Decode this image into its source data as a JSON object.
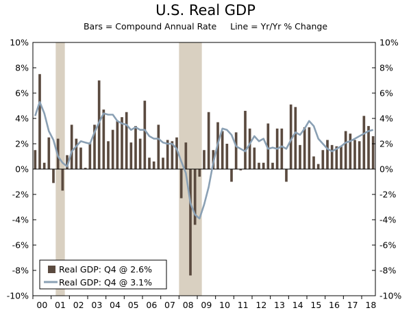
{
  "chart_data": {
    "type": "bar",
    "title": "U.S. Real GDP",
    "subtitle": "Bars = Compound Annual Rate     Line = Yr/Yr % Change",
    "ylim": [
      -10,
      10
    ],
    "yticks_left": [
      "10%",
      "8%",
      "6%",
      "4%",
      "2%",
      "0%",
      "-2%",
      "-4%",
      "-6%",
      "-8%",
      "-10%"
    ],
    "yticks_right": [
      "10%",
      "8%",
      "6%",
      "4%",
      "2%",
      "0%",
      "-2%",
      "-4%",
      "-6%",
      "-8%",
      "-10%"
    ],
    "ytick_values": [
      10,
      8,
      6,
      4,
      2,
      0,
      -2,
      -4,
      -6,
      -8,
      -10
    ],
    "x_labels": [
      "00",
      "01",
      "02",
      "03",
      "04",
      "05",
      "06",
      "07",
      "08",
      "09",
      "10",
      "11",
      "12",
      "13",
      "14",
      "15",
      "16",
      "17",
      "18"
    ],
    "quarters_per_year": 4,
    "recessions": [
      {
        "start_q": 5,
        "end_q": 7
      },
      {
        "start_q": 32,
        "end_q": 37
      }
    ],
    "series": [
      {
        "name": "Real GDP: Q4 @ 2.6%",
        "kind": "bar",
        "color": "#5a4a3f",
        "values": [
          1.5,
          7.5,
          0.5,
          2.5,
          -1.1,
          2.4,
          -1.7,
          1.1,
          3.5,
          2.4,
          1.7,
          0.1,
          2.1,
          3.5,
          7.0,
          4.7,
          2.2,
          3.1,
          3.8,
          4.1,
          4.5,
          2.1,
          3.4,
          2.4,
          5.4,
          0.9,
          0.6,
          3.5,
          0.9,
          2.3,
          2.2,
          2.5,
          -2.3,
          2.1,
          -8.4,
          -4.4,
          -0.6,
          1.5,
          4.5,
          1.5,
          3.7,
          3.0,
          2.0,
          -1.0,
          2.9,
          -0.1,
          4.6,
          3.2,
          1.7,
          0.5,
          0.5,
          3.6,
          0.5,
          3.2,
          3.2,
          -1.0,
          5.1,
          4.9,
          1.9,
          3.3,
          3.3,
          1.0,
          0.4,
          1.5,
          2.3,
          1.9,
          1.8,
          1.8,
          3.0,
          2.8,
          2.3,
          2.2,
          4.2,
          3.4,
          2.6
        ]
      },
      {
        "name": "Real GDP: Q4 @ 3.1%",
        "kind": "line",
        "color": "#8aa0b4",
        "values": [
          4.2,
          5.3,
          4.4,
          3.0,
          2.3,
          1.0,
          0.5,
          0.2,
          1.4,
          1.8,
          2.2,
          2.1,
          2.0,
          2.9,
          3.7,
          4.4,
          4.3,
          4.3,
          3.8,
          3.6,
          3.5,
          3.1,
          3.3,
          3.1,
          3.1,
          2.6,
          2.4,
          2.4,
          2.1,
          2.0,
          2.0,
          1.6,
          0.6,
          -0.3,
          -2.7,
          -3.6,
          -3.9,
          -2.8,
          -1.4,
          0.5,
          2.0,
          3.2,
          3.1,
          2.7,
          1.8,
          1.6,
          1.4,
          2.0,
          2.6,
          2.2,
          2.4,
          1.6,
          1.7,
          1.6,
          1.8,
          1.6,
          2.3,
          2.9,
          2.7,
          3.2,
          3.8,
          3.4,
          2.4,
          2.0,
          1.6,
          1.4,
          1.6,
          1.8,
          2.1,
          2.2,
          2.4,
          2.6,
          2.8,
          3.0,
          3.1
        ]
      }
    ],
    "legend_position": "bottom-left"
  }
}
